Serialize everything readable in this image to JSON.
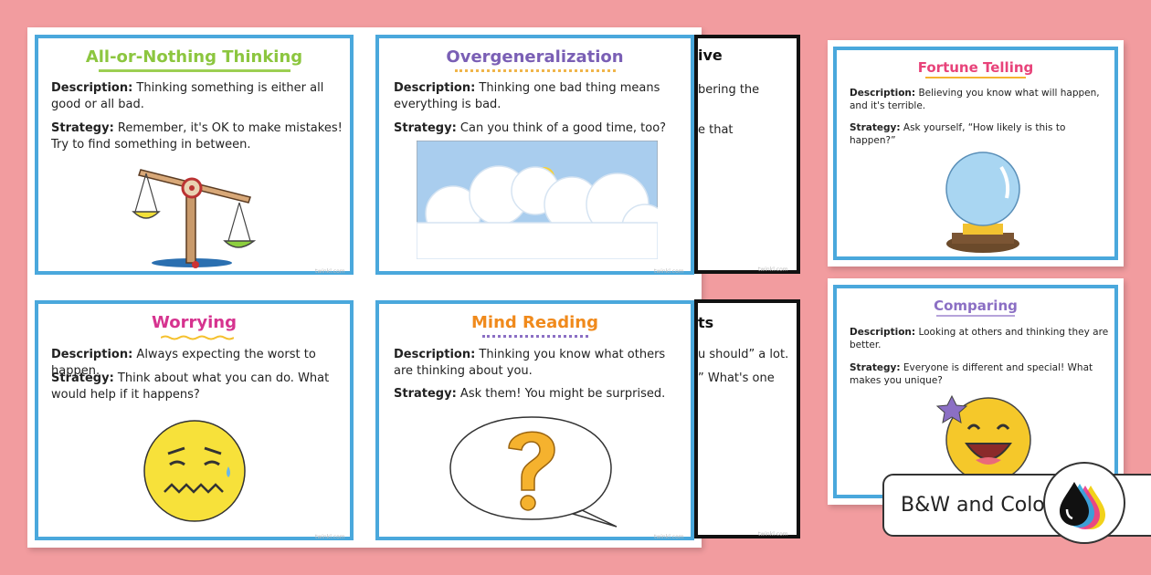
{
  "cards": {
    "all_or_nothing": {
      "title": "All-or-Nothing Thinking",
      "desc_label": "Description:",
      "desc": "Thinking something is either all good or all bad.",
      "strat_label": "Strategy:",
      "strat": "Remember, it's OK to make mistakes! Try to find something in between."
    },
    "overgeneralization": {
      "title": "Overgeneralization",
      "desc_label": "Description:",
      "desc": "Thinking one bad thing means everything is bad.",
      "strat_label": "Strategy:",
      "strat": "Can you think of a good time, too?"
    },
    "worrying": {
      "title": "Worrying",
      "desc_label": "Description:",
      "desc": "Always expecting the worst to happen.",
      "strat_label": "Strategy:",
      "strat": "Think about what you can do. What would help if it happens?"
    },
    "mind_reading": {
      "title": "Mind Reading",
      "desc_label": "Description:",
      "desc": "Thinking you know what others are thinking about you.",
      "strat_label": "Strategy:",
      "strat": "Ask them! You might be surprised."
    },
    "fortune_telling": {
      "title": "Fortune Telling",
      "desc_label": "Description:",
      "desc": "Believing you know what will happen, and it's terrible.",
      "strat_label": "Strategy:",
      "strat": "Ask yourself, “How likely is this to happen?”"
    },
    "comparing": {
      "title": "Comparing",
      "desc_label": "Description:",
      "desc": "Looking at others and thinking they are better.",
      "strat_label": "Strategy:",
      "strat": "Everyone is different and special! What makes you unique?"
    },
    "hidden_top": {
      "title_frag": "ive",
      "line1": "bering the",
      "line2": "e that"
    },
    "hidden_bottom": {
      "title_frag": "ts",
      "line1": "u should” a lot.",
      "line2": "” What's one"
    }
  },
  "badge": {
    "label": "B&W and Color"
  },
  "colors": {
    "background": "#f29c9f",
    "card_border": "#4aa8dc",
    "title_green": "#8cc63f",
    "title_purple": "#7a5fb5",
    "title_magenta": "#d6338f",
    "title_orange": "#f08a1c",
    "title_pink": "#e8437a",
    "title_lavender": "#8b6fc4"
  }
}
